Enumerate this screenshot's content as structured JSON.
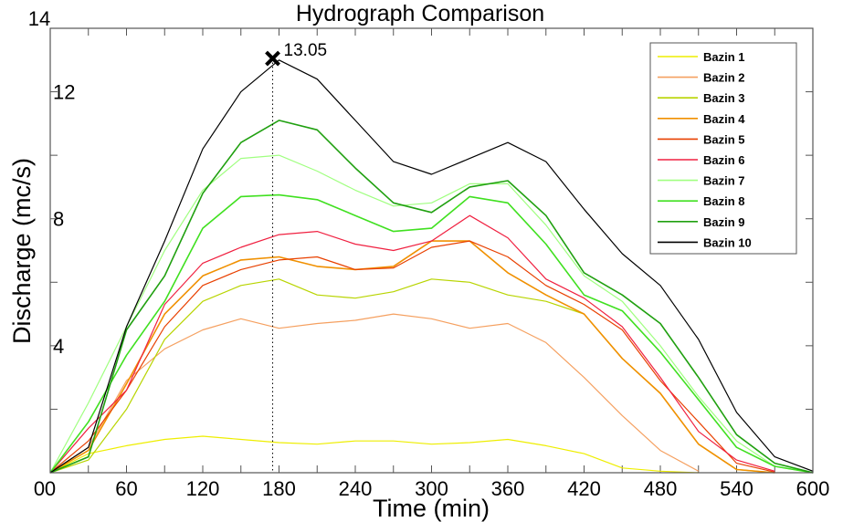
{
  "chart_data": {
    "type": "line",
    "title": "Hydrograph Comparison",
    "xlabel": "Time (min)",
    "ylabel": "Discharge (mc/s)",
    "xlim": [
      0,
      600
    ],
    "ylim": [
      0,
      14
    ],
    "x_tick_labels": [
      "0",
      "60",
      "120",
      "180",
      "240",
      "300",
      "360",
      "420",
      "480",
      "540",
      "600"
    ],
    "x_minor_tick_step": 30,
    "y_tick_labels": [
      "0",
      "4",
      "8",
      "12",
      "14"
    ],
    "y_tick_values": [
      0,
      4,
      8,
      12,
      14
    ],
    "y_minor_tick_step": 2,
    "grid": false,
    "legend_position": "top-right",
    "x": [
      0,
      30,
      60,
      90,
      120,
      150,
      180,
      210,
      240,
      270,
      300,
      330,
      360,
      390,
      420,
      450,
      480,
      510,
      540,
      570,
      600
    ],
    "series": [
      {
        "name": "Bazin 1",
        "color": "#eeee00",
        "values": [
          0,
          0.6,
          0.85,
          1.05,
          1.15,
          1.05,
          0.95,
          0.9,
          1.0,
          1.0,
          0.9,
          0.95,
          1.05,
          0.85,
          0.6,
          0.15,
          0.05,
          0,
          null,
          null,
          null
        ]
      },
      {
        "name": "Bazin 2",
        "color": "#f5a060",
        "values": [
          0,
          0.8,
          2.9,
          3.9,
          4.5,
          4.85,
          4.55,
          4.7,
          4.8,
          5.0,
          4.85,
          4.55,
          4.7,
          4.1,
          3.0,
          1.8,
          0.7,
          0.05,
          null,
          null,
          null
        ]
      },
      {
        "name": "Bazin 3",
        "color": "#b8d400",
        "values": [
          0,
          0.4,
          2.0,
          4.2,
          5.4,
          5.9,
          6.1,
          5.6,
          5.5,
          5.7,
          6.1,
          6.0,
          5.6,
          5.4,
          5.0,
          3.6,
          2.5,
          0.9,
          0.1,
          0,
          null
        ]
      },
      {
        "name": "Bazin 4",
        "color": "#f09000",
        "values": [
          0,
          0.7,
          2.8,
          5.0,
          6.2,
          6.7,
          6.8,
          6.5,
          6.4,
          6.5,
          7.3,
          7.3,
          6.3,
          5.6,
          5.0,
          3.6,
          2.5,
          0.9,
          0.1,
          0,
          null
        ]
      },
      {
        "name": "Bazin 5",
        "color": "#e84000",
        "values": [
          0,
          1.0,
          2.6,
          4.6,
          5.9,
          6.4,
          6.7,
          6.8,
          6.4,
          6.45,
          7.1,
          7.3,
          6.8,
          5.9,
          5.3,
          4.5,
          2.9,
          1.6,
          0.3,
          0.02,
          null
        ]
      },
      {
        "name": "Bazin 6",
        "color": "#f02040",
        "values": [
          0,
          1.4,
          2.6,
          5.3,
          6.6,
          7.1,
          7.5,
          7.6,
          7.2,
          7.0,
          7.3,
          8.1,
          7.4,
          6.1,
          5.5,
          4.6,
          3.0,
          1.3,
          0.4,
          0.05,
          null
        ]
      },
      {
        "name": "Bazin 7",
        "color": "#a0ff80",
        "values": [
          0,
          2.2,
          4.6,
          7.0,
          8.9,
          9.9,
          10.0,
          9.5,
          8.9,
          8.4,
          8.5,
          9.1,
          9.1,
          7.8,
          6.2,
          5.4,
          4.0,
          2.4,
          1.0,
          0.2,
          0
        ]
      },
      {
        "name": "Bazin 8",
        "color": "#40e020",
        "values": [
          0,
          1.6,
          3.7,
          5.4,
          7.7,
          8.7,
          8.75,
          8.6,
          8.1,
          7.6,
          7.7,
          8.7,
          8.5,
          7.2,
          5.6,
          5.1,
          3.8,
          2.3,
          0.8,
          0.2,
          0
        ]
      },
      {
        "name": "Bazin 9",
        "color": "#20a010",
        "values": [
          0,
          0.5,
          4.5,
          6.2,
          8.8,
          10.4,
          11.1,
          10.8,
          9.6,
          8.5,
          8.2,
          9.0,
          9.2,
          8.1,
          6.3,
          5.6,
          4.7,
          3.0,
          1.2,
          0.3,
          0
        ]
      },
      {
        "name": "Bazin 10",
        "color": "#000000",
        "values": [
          0,
          0.8,
          4.6,
          7.3,
          10.2,
          12.0,
          13.0,
          12.4,
          11.1,
          9.8,
          9.4,
          9.9,
          10.4,
          9.8,
          8.3,
          6.9,
          5.9,
          4.2,
          1.9,
          0.5,
          0.05
        ]
      }
    ],
    "annotations": [
      {
        "marker": "x",
        "x": 175,
        "y": 13.05,
        "label": "13.05",
        "dotted_vertical_line": true
      }
    ]
  }
}
